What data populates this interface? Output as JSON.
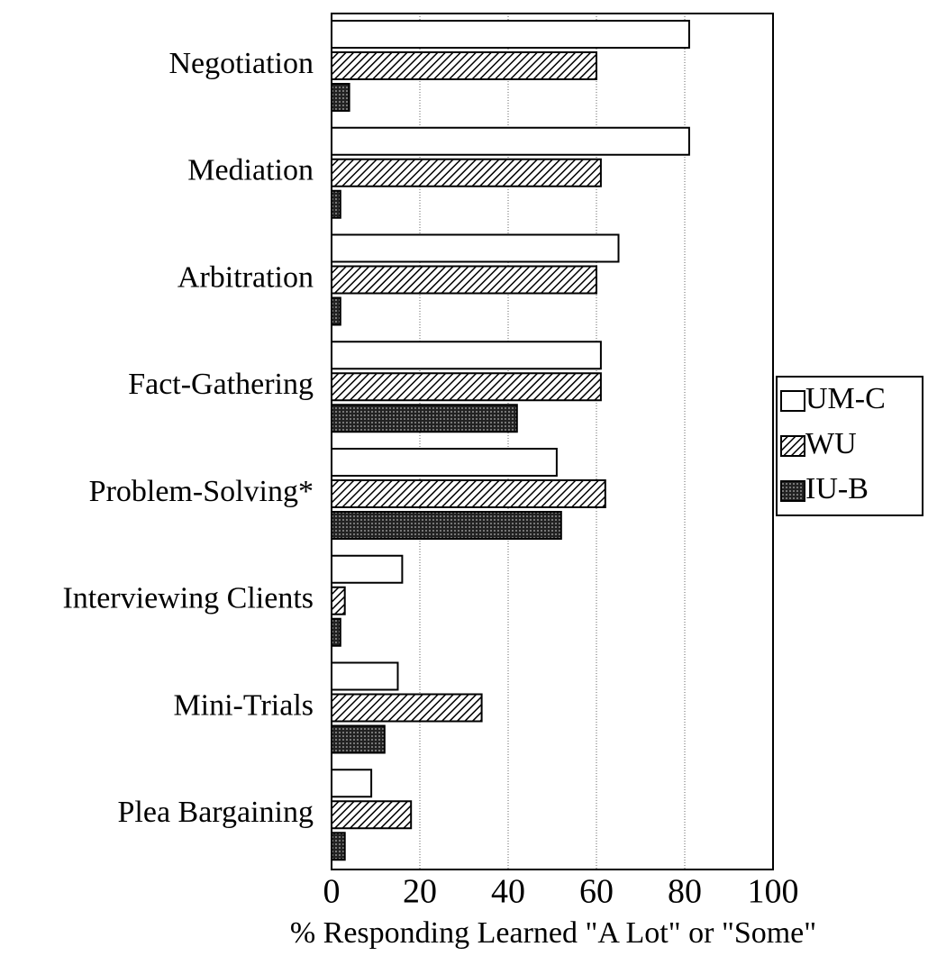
{
  "chart_data": {
    "type": "bar",
    "orientation": "horizontal",
    "categories": [
      "Negotiation",
      "Mediation",
      "Arbitration",
      "Fact-Gathering",
      "Problem-Solving*",
      "Interviewing Clients",
      "Mini-Trials",
      "Plea Bargaining"
    ],
    "series": [
      {
        "name": "UM-C",
        "color": "#ffffff",
        "values": [
          81,
          81,
          65,
          61,
          51,
          16,
          15,
          9
        ]
      },
      {
        "name": "WU",
        "color": "#b8b8b8",
        "values": [
          60,
          61,
          60,
          61,
          62,
          3,
          34,
          18
        ]
      },
      {
        "name": "IU-B",
        "color": "#3a3a3a",
        "values": [
          4,
          2,
          2,
          42,
          52,
          2,
          12,
          3
        ]
      }
    ],
    "xlabel": "% Responding Learned \"A Lot\" or \"Some\"",
    "xlim": [
      0,
      100
    ],
    "xticks": [
      0,
      20,
      40,
      60,
      80,
      100
    ],
    "grid": true,
    "legend": "right"
  }
}
